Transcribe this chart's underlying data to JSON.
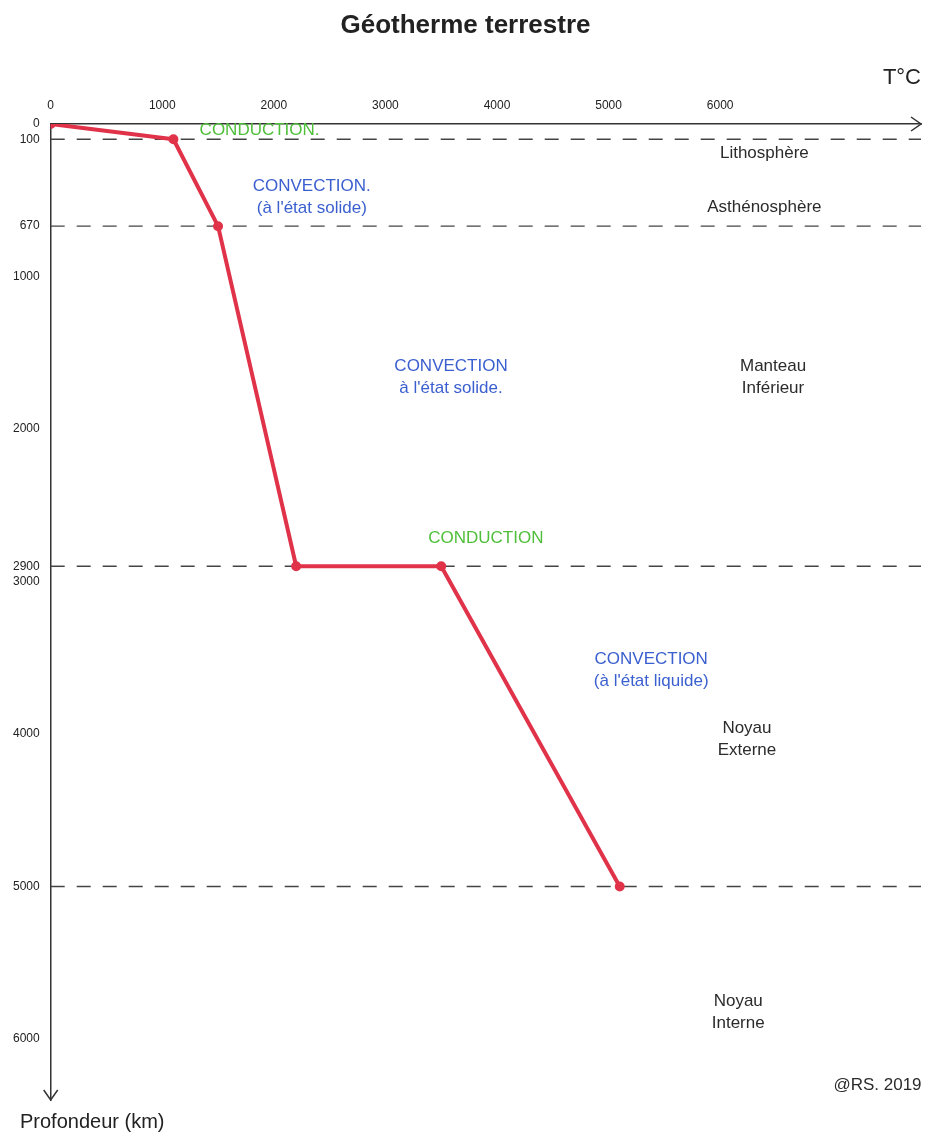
{
  "chart_data": {
    "type": "line",
    "title": "Géotherme terrestre",
    "xlabel": "T°C",
    "ylabel": "Profondeur (km)",
    "x": [
      0,
      1100,
      1500,
      2200,
      3500,
      5100
    ],
    "series": [
      {
        "color": "#e0334a",
        "values": [
          0,
          100,
          670,
          2900,
          2900,
          5000
        ]
      }
    ],
    "xlim": [
      0,
      7800
    ],
    "xticks": [
      0,
      1000,
      2000,
      3000,
      4000,
      5000,
      6000
    ],
    "ylim": [
      6400,
      0
    ],
    "yticks": [
      0,
      100,
      670,
      1000,
      2000,
      2900,
      3000,
      4000,
      5000,
      6000
    ],
    "grid": false,
    "legend": false,
    "marker": "circle",
    "line_style": "solid",
    "ref_lines": [
      {
        "axis": "y",
        "value": 100,
        "color": "#444444",
        "line_style": "dashed"
      },
      {
        "axis": "y",
        "value": 670,
        "color": "#444444",
        "line_style": "dashed"
      },
      {
        "axis": "y",
        "value": 2900,
        "color": "#444444",
        "line_style": "dashed"
      },
      {
        "axis": "y",
        "value": 5000,
        "color": "#444444",
        "line_style": "dashed"
      }
    ],
    "annotations": [
      "CONDUCTION.",
      "CONVECTION.\n(à l'état solide)",
      "CONVECTION\nà l'état solide.",
      "CONDUCTION",
      "CONVECTION\n(à l'état liquide)",
      "Lithosphère",
      "Asthénosphère",
      "Manteau\nInférieur",
      "Noyau\nExterne",
      "Noyau\nInterne",
      "@RS. 2019"
    ]
  }
}
